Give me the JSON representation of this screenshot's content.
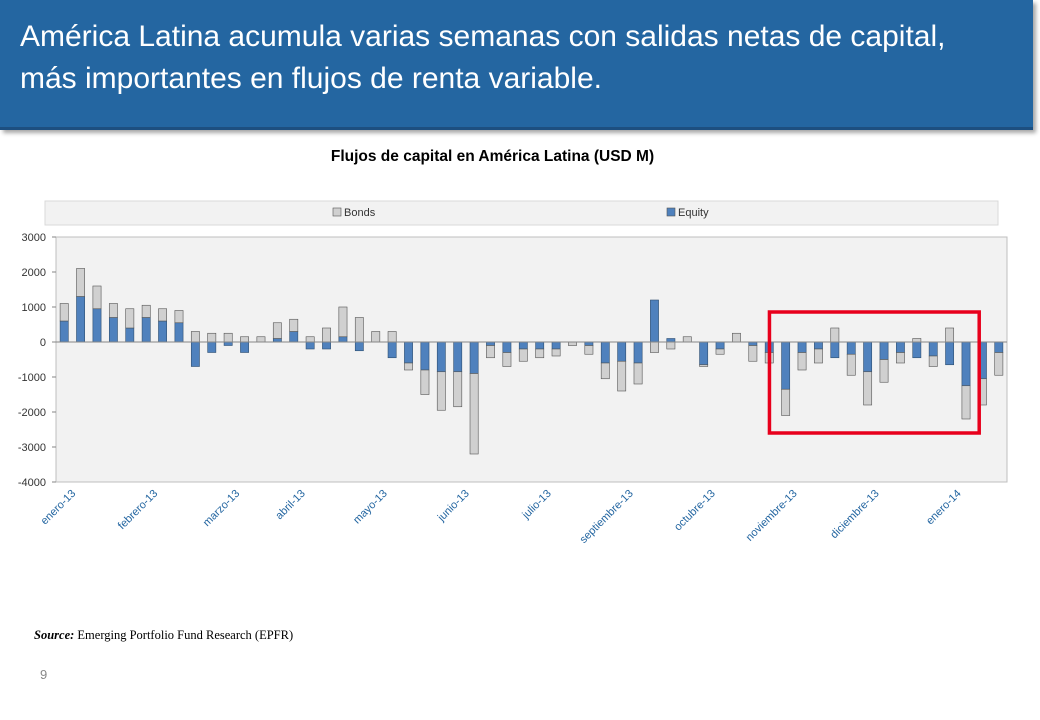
{
  "slide": {
    "title_line1": "América Latina acumula varias semanas con salidas netas de capital,",
    "title_line2": "más importantes en flujos de renta variable.",
    "source_label": "Source:",
    "source_text": "Emerging Portfolio Fund Research (EPFR)",
    "page_number": "9"
  },
  "colors": {
    "banner": "#2466a1",
    "equity": "#4f81bd",
    "bonds": "#d0d0d0",
    "highlight": "#e8001c",
    "plot_bg": "#f2f2f2"
  },
  "chart_data": {
    "type": "bar",
    "stacked": true,
    "title": "Flujos de capital en América Latina (USD M)",
    "ylim": [
      -4000,
      3000
    ],
    "yticks": [
      3000,
      2000,
      1000,
      0,
      -1000,
      -2000,
      -3000,
      -4000
    ],
    "grid": false,
    "legend_position": "top",
    "x_tick_labels": [
      "enero-13",
      "febrero-13",
      "marzo-13",
      "abril-13",
      "mayo-13",
      "junio-13",
      "julio-13",
      "septiembre-13",
      "octubre-13",
      "noviembre-13",
      "diciembre-13",
      "enero-14"
    ],
    "x_tick_positions": [
      0,
      5,
      10,
      14,
      19,
      24,
      29,
      34,
      39,
      44,
      49,
      54
    ],
    "highlight_range": [
      44,
      56
    ],
    "series": [
      {
        "name": "Equity",
        "values": [
          600,
          1300,
          950,
          700,
          400,
          700,
          600,
          550,
          -700,
          -300,
          -100,
          -300,
          0,
          100,
          300,
          -200,
          -200,
          150,
          -250,
          0,
          -450,
          -600,
          -800,
          -850,
          -850,
          -900,
          -100,
          -300,
          -200,
          -200,
          -200,
          0,
          -100,
          -600,
          -550,
          -600,
          1200,
          100,
          0,
          -650,
          -200,
          0,
          -100,
          -300,
          -1350,
          -300,
          -200,
          -450,
          -350,
          -850,
          -500,
          -300,
          -450,
          -400,
          -650,
          -1250,
          -1050,
          -300
        ],
        "color": "#4f81bd"
      },
      {
        "name": "Bonds",
        "values": [
          500,
          800,
          650,
          400,
          550,
          350,
          350,
          350,
          300,
          250,
          250,
          150,
          150,
          450,
          350,
          150,
          400,
          850,
          700,
          300,
          300,
          -200,
          -700,
          -1100,
          -1000,
          -2300,
          -350,
          -400,
          -350,
          -250,
          -200,
          -100,
          -250,
          -450,
          -850,
          -600,
          -300,
          -200,
          150,
          -50,
          -150,
          250,
          -450,
          -300,
          -750,
          -500,
          -400,
          400,
          -600,
          -950,
          -650,
          -300,
          100,
          -300,
          400,
          -950,
          -750,
          -650
        ],
        "color": "#d0d0d0"
      }
    ]
  }
}
